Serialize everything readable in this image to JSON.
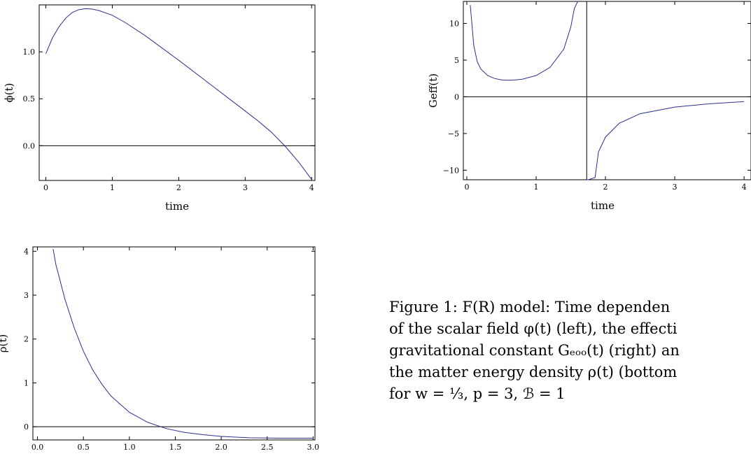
{
  "chart_data": [
    {
      "type": "line",
      "title": "",
      "xlabel": "time",
      "ylabel": "ϕ(t)",
      "xlim": [
        -0.1,
        4.05
      ],
      "ylim": [
        -0.37,
        1.5
      ],
      "xticks": [
        "0",
        "1",
        "2",
        "3",
        "4"
      ],
      "yticks": [
        "0.0",
        "0.5",
        "1.0"
      ],
      "x": [
        0,
        0.1,
        0.2,
        0.3,
        0.4,
        0.5,
        0.6,
        0.7,
        0.8,
        1.0,
        1.2,
        1.5,
        2.0,
        2.5,
        3.0,
        3.2,
        3.4,
        3.6,
        3.8,
        4.0
      ],
      "y": [
        0.98,
        1.15,
        1.27,
        1.36,
        1.42,
        1.45,
        1.46,
        1.455,
        1.44,
        1.39,
        1.31,
        1.17,
        0.91,
        0.64,
        0.37,
        0.26,
        0.14,
        -0.005,
        -0.17,
        -0.36
      ]
    },
    {
      "type": "line",
      "title": "",
      "xlabel": "time",
      "ylabel": "Geff(t)",
      "xlim": [
        -0.05,
        4.1
      ],
      "ylim": [
        -11.3,
        13
      ],
      "xticks": [
        "0",
        "1",
        "2",
        "3",
        "4"
      ],
      "yticks": [
        "−10",
        "−5",
        "0",
        "5",
        "10"
      ],
      "x": [
        0.05,
        0.1,
        0.15,
        0.2,
        0.3,
        0.4,
        0.5,
        0.6,
        0.7,
        0.8,
        1.0,
        1.2,
        1.4,
        1.5,
        1.55,
        1.6,
        1.73,
        1.75,
        1.85,
        1.9,
        2.0,
        2.2,
        2.5,
        3.0,
        3.5,
        4.0
      ],
      "y": [
        12.5,
        7.0,
        4.8,
        3.8,
        2.9,
        2.5,
        2.3,
        2.25,
        2.3,
        2.4,
        2.9,
        4.0,
        6.5,
        9.5,
        12.0,
        13.0,
        -11.3,
        -11.3,
        -11.0,
        -7.5,
        -5.5,
        -3.6,
        -2.3,
        -1.4,
        -0.95,
        -0.65
      ]
    },
    {
      "type": "line",
      "title": "",
      "xlabel": "time",
      "ylabel": "ρ(t)",
      "xlim": [
        -0.05,
        3.02
      ],
      "ylim": [
        -0.3,
        4.1
      ],
      "xticks": [
        "0.0",
        "0.5",
        "1.0",
        "1.5",
        "2.0",
        "2.5",
        "3.0"
      ],
      "yticks": [
        "0",
        "1",
        "2",
        "3",
        "4"
      ],
      "x": [
        0.17,
        0.2,
        0.3,
        0.4,
        0.5,
        0.6,
        0.7,
        0.8,
        1.0,
        1.2,
        1.4,
        1.6,
        1.8,
        2.0,
        2.3,
        2.6,
        3.0
      ],
      "y": [
        4.05,
        3.7,
        2.9,
        2.25,
        1.72,
        1.3,
        0.97,
        0.7,
        0.33,
        0.1,
        -0.04,
        -0.13,
        -0.18,
        -0.22,
        -0.25,
        -0.26,
        -0.26
      ]
    }
  ],
  "caption": {
    "lines": [
      "Figure 1:  F(R) model:  Time dependen",
      "of the scalar field φ(t) (left),  the effecti",
      "gravitational constant Gₑₒₒ(t) (right) an",
      "the matter energy density ρ(t) (bottom",
      "for w = ⅓, p = 3, ℬ = 1"
    ]
  }
}
